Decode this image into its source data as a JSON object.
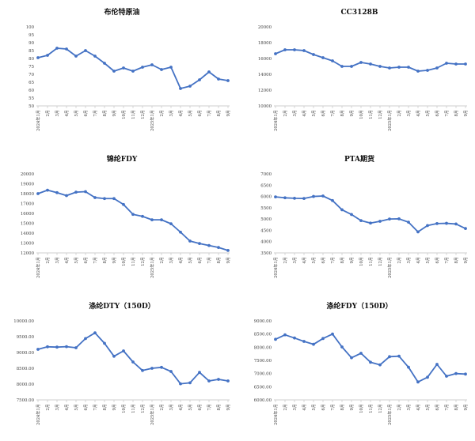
{
  "x_labels": [
    "2024年1月",
    "2月",
    "3月",
    "4月",
    "5月",
    "6月",
    "7月",
    "8月",
    "9月",
    "10月",
    "11月",
    "12月",
    "2025年1月",
    "2月",
    "3月",
    "4月",
    "5月",
    "6月",
    "7月",
    "8月",
    "9月"
  ],
  "line_color": "#4472c4",
  "chart_data": [
    {
      "type": "line",
      "title": "布伦特原油",
      "ylim": [
        50,
        100
      ],
      "yticks": [
        50,
        55,
        60,
        65,
        70,
        75,
        80,
        85,
        90,
        95,
        100
      ],
      "series": [
        {
          "values": [
            80.5,
            82,
            86.5,
            86,
            81.5,
            85,
            81.5,
            77,
            72,
            74,
            72,
            74.5,
            76,
            73,
            74.5,
            61,
            62.5,
            66.5,
            71.5,
            67,
            66
          ]
        }
      ]
    },
    {
      "type": "line",
      "title": "CC3128B",
      "ylim": [
        10000,
        20000
      ],
      "yticks": [
        10000,
        12000,
        14000,
        16000,
        18000,
        20000
      ],
      "series": [
        {
          "values": [
            16600,
            17100,
            17100,
            17000,
            16500,
            16100,
            15700,
            15000,
            15000,
            15500,
            15300,
            15000,
            14800,
            14900,
            14900,
            14400,
            14500,
            14800,
            15400,
            15300,
            15300
          ]
        }
      ]
    },
    {
      "type": "line",
      "title": "锦纶FDY",
      "ylim": [
        12000,
        20000
      ],
      "yticks": [
        12000,
        13000,
        14000,
        15000,
        16000,
        17000,
        18000,
        19000,
        20000
      ],
      "series": [
        {
          "values": [
            18000,
            18350,
            18100,
            17800,
            18150,
            18200,
            17600,
            17500,
            17500,
            16900,
            15900,
            15700,
            15350,
            15350,
            14950,
            14100,
            13200,
            12950,
            12750,
            12550,
            12250
          ]
        }
      ]
    },
    {
      "type": "line",
      "title": "PTA期货",
      "ylim": [
        3500,
        7000
      ],
      "yticks": [
        3500,
        4000,
        4500,
        5000,
        5500,
        6000,
        6500,
        7000
      ],
      "series": [
        {
          "values": [
            5980,
            5940,
            5920,
            5910,
            6000,
            6020,
            5820,
            5410,
            5200,
            4930,
            4820,
            4900,
            5000,
            5010,
            4860,
            4430,
            4710,
            4800,
            4810,
            4780,
            4580
          ]
        }
      ]
    },
    {
      "type": "line",
      "title": "涤纶DTY（150D）",
      "ylim": [
        7500,
        10000
      ],
      "yticks": [
        "7500.00",
        "8000.00",
        "8500.00",
        "9000.00",
        "9500.00",
        "10000.00"
      ],
      "series": [
        {
          "values": [
            9100,
            9180,
            9170,
            9185,
            9150,
            9440,
            9620,
            9290,
            8880,
            9050,
            8700,
            8430,
            8500,
            8530,
            8400,
            8010,
            8040,
            8370,
            8100,
            8150,
            8100
          ]
        }
      ]
    },
    {
      "type": "line",
      "title": "涤纶FDY（150D）",
      "ylim": [
        6000,
        9000
      ],
      "yticks": [
        "6000.00",
        "6500.00",
        "7000.00",
        "7500.00",
        "8000.00",
        "8500.00",
        "9000.00"
      ],
      "series": [
        {
          "values": [
            8300,
            8470,
            8350,
            8220,
            8110,
            8330,
            8500,
            8010,
            7600,
            7770,
            7430,
            7330,
            7640,
            7660,
            7240,
            6680,
            6860,
            7350,
            6900,
            7000,
            6980
          ]
        }
      ]
    }
  ]
}
